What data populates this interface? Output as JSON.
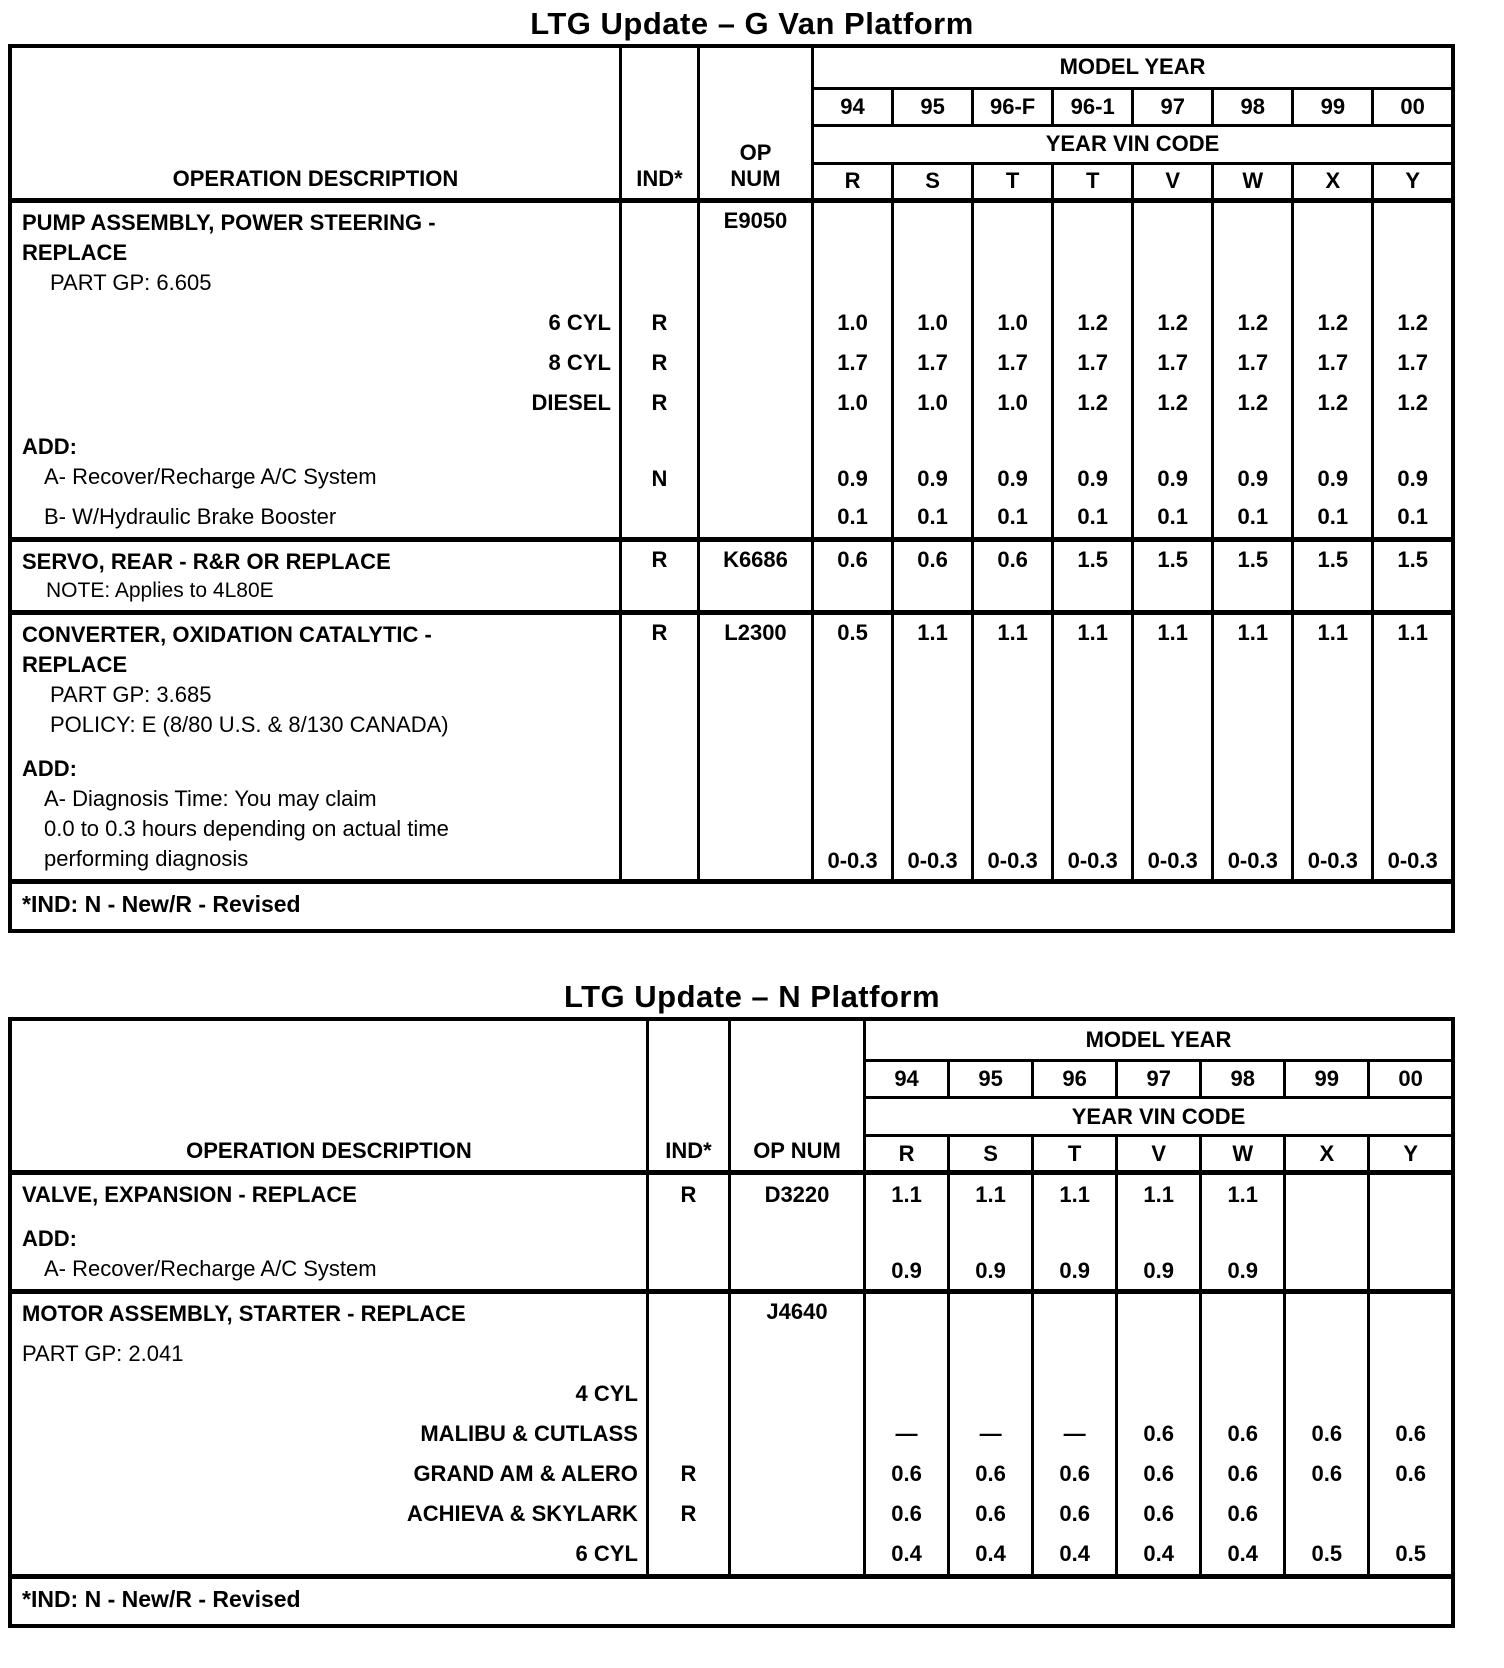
{
  "tables": [
    {
      "title": "LTG Update – G Van Platform",
      "headers": {
        "operation": "OPERATION DESCRIPTION",
        "ind": "IND*",
        "op_num_lines": [
          "OP",
          "NUM"
        ],
        "model_year": "MODEL YEAR",
        "year_vin_code": "YEAR VIN CODE"
      },
      "model_years": [
        "94",
        "95",
        "96-F",
        "96-1",
        "97",
        "98",
        "99",
        "00"
      ],
      "vin_codes": [
        "R",
        "S",
        "T",
        "T",
        "V",
        "W",
        "X",
        "Y"
      ],
      "footnote": "*IND: N - New/R - Revised",
      "rows": [
        {
          "name": "pump-assembly-power-steering",
          "section_start": true,
          "valign": "top",
          "desc_lines": [
            {
              "text": "PUMP ASSEMBLY, POWER STEERING -",
              "style": "title"
            },
            {
              "text": "REPLACE",
              "style": "title"
            },
            {
              "text": "PART GP: 6.605",
              "style": "detail"
            }
          ],
          "ind": "",
          "op": "E9050",
          "values": [
            "",
            "",
            "",
            "",
            "",
            "",
            "",
            ""
          ]
        },
        {
          "name": "pump-6-cyl",
          "desc_lines": [
            {
              "text": "6 CYL",
              "style": "sub-right"
            }
          ],
          "ind": "R",
          "op": "",
          "values": [
            "1.0",
            "1.0",
            "1.0",
            "1.2",
            "1.2",
            "1.2",
            "1.2",
            "1.2"
          ]
        },
        {
          "name": "pump-8-cyl",
          "desc_lines": [
            {
              "text": "8 CYL",
              "style": "sub-right"
            }
          ],
          "ind": "R",
          "op": "",
          "values": [
            "1.7",
            "1.7",
            "1.7",
            "1.7",
            "1.7",
            "1.7",
            "1.7",
            "1.7"
          ]
        },
        {
          "name": "pump-diesel",
          "desc_lines": [
            {
              "text": "DIESEL",
              "style": "sub-right"
            }
          ],
          "ind": "R",
          "op": "",
          "values": [
            "1.0",
            "1.0",
            "1.0",
            "1.2",
            "1.2",
            "1.2",
            "1.2",
            "1.2"
          ]
        },
        {
          "name": "pump-add-a-recover-recharge",
          "valign": "bottom",
          "desc_lines": [
            {
              "text": "ADD:",
              "style": "add"
            },
            {
              "text": "A- Recover/Recharge A/C System",
              "style": "item"
            }
          ],
          "ind": "N",
          "op": "",
          "values": [
            "0.9",
            "0.9",
            "0.9",
            "0.9",
            "0.9",
            "0.9",
            "0.9",
            "0.9"
          ]
        },
        {
          "name": "pump-add-b-hydraulic-brake-booster",
          "desc_lines": [
            {
              "text": "B- W/Hydraulic Brake Booster",
              "style": "item"
            }
          ],
          "ind": "",
          "op": "",
          "values": [
            "0.1",
            "0.1",
            "0.1",
            "0.1",
            "0.1",
            "0.1",
            "0.1",
            "0.1"
          ]
        },
        {
          "name": "servo-rear",
          "section_start": true,
          "valign": "top",
          "desc_lines": [
            {
              "text": "SERVO, REAR - R&R OR REPLACE",
              "style": "title"
            },
            {
              "text": "NOTE: Applies to 4L80E",
              "style": "note"
            }
          ],
          "ind": "R",
          "op": "K6686",
          "values": [
            "0.6",
            "0.6",
            "0.6",
            "1.5",
            "1.5",
            "1.5",
            "1.5",
            "1.5"
          ]
        },
        {
          "name": "converter-oxidation-catalytic",
          "section_start": true,
          "valign": "top",
          "desc_lines": [
            {
              "text": "CONVERTER, OXIDATION CATALYTIC -",
              "style": "title"
            },
            {
              "text": "REPLACE",
              "style": "title"
            },
            {
              "text": "PART GP: 3.685",
              "style": "detail"
            },
            {
              "text": "POLICY: E (8/80 U.S. & 8/130 CANADA)",
              "style": "detail"
            }
          ],
          "ind": "R",
          "op": "L2300",
          "values": [
            "0.5",
            "1.1",
            "1.1",
            "1.1",
            "1.1",
            "1.1",
            "1.1",
            "1.1"
          ]
        },
        {
          "name": "converter-add-a-diagnosis-time",
          "valign": "bottom",
          "desc_lines": [
            {
              "text": "ADD:",
              "style": "add"
            },
            {
              "text": "A- Diagnosis Time: You may claim",
              "style": "item"
            },
            {
              "text": "0.0 to 0.3 hours depending on actual time",
              "style": "item"
            },
            {
              "text": "performing diagnosis",
              "style": "item"
            }
          ],
          "ind": "",
          "op": "",
          "values": [
            "0-0.3",
            "0-0.3",
            "0-0.3",
            "0-0.3",
            "0-0.3",
            "0-0.3",
            "0-0.3",
            "0-0.3"
          ]
        }
      ]
    },
    {
      "title": "LTG Update – N Platform",
      "headers": {
        "operation": "OPERATION DESCRIPTION",
        "ind": "IND*",
        "op_num_lines": [
          "OP NUM"
        ],
        "model_year": "MODEL YEAR",
        "year_vin_code": "YEAR VIN CODE"
      },
      "model_years": [
        "94",
        "95",
        "96",
        "97",
        "98",
        "99",
        "00"
      ],
      "vin_codes": [
        "R",
        "S",
        "T",
        "V",
        "W",
        "X",
        "Y"
      ],
      "footnote": "*IND: N - New/R - Revised",
      "rows": [
        {
          "name": "valve-expansion",
          "section_start": true,
          "desc_lines": [
            {
              "text": "VALVE, EXPANSION - REPLACE",
              "style": "title"
            }
          ],
          "ind": "R",
          "op": "D3220",
          "values": [
            "1.1",
            "1.1",
            "1.1",
            "1.1",
            "1.1",
            "",
            ""
          ]
        },
        {
          "name": "valve-add-a-recover-recharge",
          "valign": "bottom",
          "desc_lines": [
            {
              "text": "ADD:",
              "style": "add"
            },
            {
              "text": "A- Recover/Recharge A/C System",
              "style": "item"
            }
          ],
          "ind": "",
          "op": "",
          "values": [
            "0.9",
            "0.9",
            "0.9",
            "0.9",
            "0.9",
            "",
            ""
          ]
        },
        {
          "name": "motor-assembly-starter",
          "section_start": true,
          "valign": "top",
          "desc_lines": [
            {
              "text": "MOTOR ASSEMBLY, STARTER - REPLACE",
              "style": "title"
            }
          ],
          "ind": "",
          "op": "J4640",
          "values": [
            "",
            "",
            "",
            "",
            "",
            "",
            ""
          ]
        },
        {
          "name": "starter-part-gp",
          "desc_lines": [
            {
              "text": "PART GP: 2.041",
              "style": "detail-flush"
            }
          ],
          "ind": "",
          "op": "",
          "values": [
            "",
            "",
            "",
            "",
            "",
            "",
            ""
          ]
        },
        {
          "name": "starter-4-cyl",
          "desc_lines": [
            {
              "text": "4 CYL",
              "style": "sub-right"
            }
          ],
          "ind": "",
          "op": "",
          "values": [
            "",
            "",
            "",
            "",
            "",
            "",
            ""
          ]
        },
        {
          "name": "starter-malibu-cutlass",
          "desc_lines": [
            {
              "text": "MALIBU & CUTLASS",
              "style": "sub-right"
            }
          ],
          "ind": "",
          "op": "",
          "values": [
            "—",
            "—",
            "—",
            "0.6",
            "0.6",
            "0.6",
            "0.6"
          ]
        },
        {
          "name": "starter-grand-am-alero",
          "desc_lines": [
            {
              "text": "GRAND AM & ALERO",
              "style": "sub-right"
            }
          ],
          "ind": "R",
          "op": "",
          "values": [
            "0.6",
            "0.6",
            "0.6",
            "0.6",
            "0.6",
            "0.6",
            "0.6"
          ]
        },
        {
          "name": "starter-achieva-skylark",
          "desc_lines": [
            {
              "text": "ACHIEVA & SKYLARK",
              "style": "sub-right"
            }
          ],
          "ind": "R",
          "op": "",
          "values": [
            "0.6",
            "0.6",
            "0.6",
            "0.6",
            "0.6",
            "",
            ""
          ]
        },
        {
          "name": "starter-6-cyl",
          "desc_lines": [
            {
              "text": "6 CYL",
              "style": "sub-right"
            }
          ],
          "ind": "",
          "op": "",
          "values": [
            "0.4",
            "0.4",
            "0.4",
            "0.4",
            "0.4",
            "0.5",
            "0.5"
          ]
        }
      ]
    }
  ]
}
